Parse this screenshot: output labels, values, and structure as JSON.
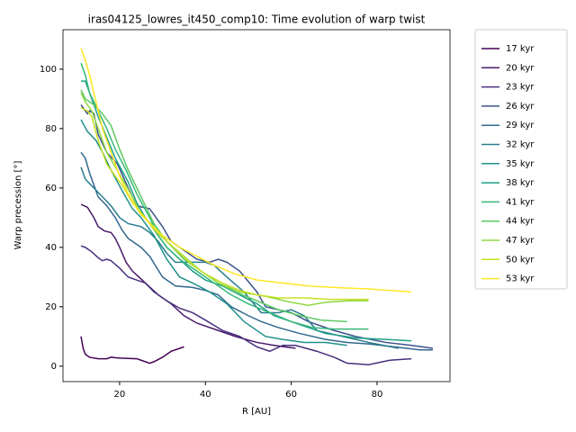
{
  "chart_data": {
    "type": "line",
    "title": "iras04125_lowres_it450_comp10: Time evolution of warp twist",
    "xlabel": "R [AU]",
    "ylabel": "Warp precession [°]",
    "xlim": [
      6.8,
      97.0
    ],
    "ylim": [
      -5.2,
      113.3
    ],
    "xticks": [
      20,
      40,
      60,
      80
    ],
    "yticks": [
      0,
      20,
      40,
      60,
      80,
      100
    ],
    "legend": "outside-upper-right",
    "series": [
      {
        "name": "17 kyr",
        "color": "#440154",
        "x": [
          11,
          11.5,
          12,
          13,
          15,
          17,
          18,
          20,
          22,
          24,
          25,
          27,
          28,
          30,
          32,
          35
        ],
        "values": [
          10,
          6,
          4,
          3,
          2.5,
          2.5,
          3,
          2.7,
          2.6,
          2.5,
          2,
          1,
          1.5,
          3,
          5,
          6.5
        ]
      },
      {
        "name": "20 kyr",
        "color": "#481a6c",
        "x": [
          11,
          12.5,
          14,
          15,
          16.5,
          18,
          19,
          20,
          21.5,
          23,
          24.5,
          26,
          29,
          32,
          35,
          38,
          43,
          47,
          52,
          56,
          61
        ],
        "values": [
          54.5,
          53.5,
          50,
          47,
          45.5,
          45,
          43,
          40,
          35,
          32,
          30,
          28,
          24,
          21,
          17,
          14.5,
          12,
          10,
          8,
          7,
          6
        ]
      },
      {
        "name": "23 kyr",
        "color": "#472f7d",
        "x": [
          11,
          12,
          13.5,
          15,
          16,
          17,
          18,
          20,
          22,
          24,
          26,
          28,
          31,
          34,
          37,
          40,
          44,
          48,
          52,
          55,
          58,
          61,
          66,
          70,
          73,
          78,
          83,
          88
        ],
        "values": [
          40.5,
          40,
          38.5,
          36.5,
          35.5,
          36,
          35.5,
          33,
          30,
          29,
          28,
          25,
          22,
          19.5,
          18,
          15.5,
          12,
          10,
          6.5,
          5,
          7,
          7,
          5,
          3,
          1,
          0.5,
          2,
          2.5
        ]
      },
      {
        "name": "26 kyr",
        "color": "#3b528b",
        "x": [
          11,
          12,
          12.5,
          13,
          14,
          15,
          17,
          19.5,
          22,
          24,
          27,
          30,
          32,
          35,
          38,
          41,
          43,
          45,
          48,
          52,
          54,
          57,
          60,
          64,
          70,
          75,
          82,
          88,
          93
        ],
        "values": [
          88,
          86,
          85,
          86,
          85,
          78,
          72,
          68,
          60,
          54,
          53,
          47,
          42,
          39,
          36,
          35,
          36,
          35,
          32,
          25,
          20,
          19,
          18,
          15,
          12,
          10,
          8,
          7,
          6
        ]
      },
      {
        "name": "29 kyr",
        "color": "#31688e",
        "x": [
          11,
          12,
          13,
          15,
          17,
          19,
          20.5,
          22,
          25,
          27,
          30,
          33,
          37,
          40,
          43,
          46,
          50,
          53,
          57,
          62,
          68,
          73,
          78,
          84,
          90,
          93
        ],
        "values": [
          72,
          70,
          65,
          57,
          54,
          50,
          46,
          43,
          40,
          37,
          30,
          27,
          26.5,
          25.5,
          24,
          20,
          17,
          15,
          13,
          11,
          9,
          8,
          7.5,
          6.5,
          5.5,
          5.5
        ]
      },
      {
        "name": "32 kyr",
        "color": "#287c8e",
        "x": [
          11,
          12,
          14,
          16,
          18,
          20,
          22,
          25,
          27,
          29,
          31,
          33,
          36,
          40,
          42,
          45,
          49,
          53,
          57,
          60,
          63,
          66,
          72,
          78,
          85
        ],
        "values": [
          67,
          63,
          60,
          57,
          54,
          50,
          48,
          47,
          45,
          42,
          38,
          35,
          35,
          35,
          34,
          30,
          25,
          18,
          18,
          19,
          17,
          12,
          10,
          8,
          6
        ]
      },
      {
        "name": "35 kyr",
        "color": "#21918c",
        "x": [
          11,
          12.5,
          14.5,
          16,
          18,
          21,
          23,
          25,
          28,
          31,
          34,
          37,
          41,
          45,
          49,
          54,
          58,
          63,
          68,
          73
        ],
        "values": [
          83,
          79,
          76,
          72,
          66,
          58,
          53,
          50,
          44,
          36,
          30,
          28,
          25,
          21,
          15,
          10,
          9,
          8,
          8,
          7
        ]
      },
      {
        "name": "38 kyr",
        "color": "#1fa088",
        "x": [
          11,
          12,
          13,
          15,
          17,
          19,
          22,
          24,
          26,
          29,
          31,
          34,
          37,
          40,
          44,
          48,
          52,
          56,
          62,
          68,
          75,
          82,
          88
        ],
        "values": [
          96,
          96,
          92,
          84,
          77,
          70,
          62,
          55,
          50,
          44,
          40,
          36,
          32,
          29,
          27,
          24,
          21,
          17,
          14,
          11,
          9.5,
          9,
          8.5
        ]
      },
      {
        "name": "41 kyr",
        "color": "#35b779",
        "x": [
          11,
          12,
          13,
          15,
          17,
          19,
          21.5,
          24,
          27,
          29,
          31,
          34,
          38,
          42,
          46,
          50,
          55,
          60,
          65,
          70,
          78
        ],
        "values": [
          102,
          98,
          92,
          86,
          80,
          73,
          66,
          58,
          50,
          44,
          40,
          36,
          32,
          28,
          24,
          21,
          18,
          15,
          13,
          12.5,
          12.5
        ]
      },
      {
        "name": "44 kyr",
        "color": "#5ec962",
        "x": [
          11,
          12,
          14,
          16,
          18,
          20,
          22,
          24,
          26,
          28,
          31,
          35,
          39,
          43,
          47,
          52,
          57,
          62,
          67,
          73
        ],
        "values": [
          93,
          90,
          88,
          85,
          81,
          73,
          66,
          60,
          54,
          48,
          42,
          36,
          32,
          28,
          25,
          22,
          19,
          17,
          15.5,
          15
        ]
      },
      {
        "name": "47 kyr",
        "color": "#90d743",
        "x": [
          11,
          12,
          13.5,
          15,
          17,
          19,
          21,
          23,
          25,
          28,
          31,
          35,
          39,
          43,
          48,
          54,
          60,
          64,
          68,
          73,
          78
        ],
        "values": [
          92,
          89,
          86,
          80,
          72,
          67,
          62,
          57,
          51,
          47,
          42,
          37,
          32,
          28,
          25,
          23.5,
          21.5,
          20.5,
          21.5,
          22,
          22
        ]
      },
      {
        "name": "50 kyr",
        "color": "#c8e020",
        "x": [
          11,
          12.5,
          13.5,
          15,
          17,
          19,
          21,
          23,
          26,
          28,
          31,
          34,
          37,
          40,
          44,
          48,
          52,
          57,
          63,
          69,
          78
        ],
        "values": [
          87,
          86,
          84,
          76,
          68,
          64,
          60,
          55,
          50,
          46,
          42,
          38,
          34,
          31,
          28,
          25.5,
          24,
          23,
          23,
          22.5,
          22.5
        ]
      },
      {
        "name": "53 kyr",
        "color": "#fde725",
        "x": [
          11,
          12,
          13,
          14,
          16,
          18,
          20,
          22,
          24.5,
          27,
          30,
          34,
          38,
          42,
          47,
          52,
          58,
          64,
          70,
          78,
          88
        ],
        "values": [
          107,
          103,
          98,
          92,
          80,
          72,
          64,
          58,
          52,
          48,
          44,
          40,
          37,
          34,
          31,
          29,
          28,
          27,
          26.5,
          26,
          25
        ]
      }
    ]
  }
}
